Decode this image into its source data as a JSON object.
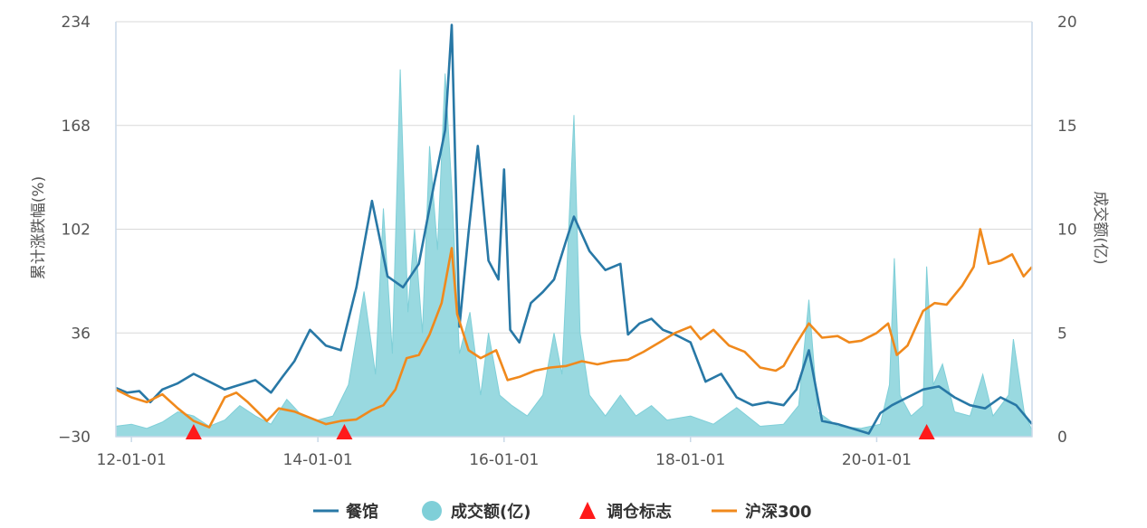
{
  "colors": {
    "restaurant": "#2878a6",
    "volume": "#7fcfd8",
    "signal": "#ff1a1a",
    "index": "#f0891c",
    "grid": "#d9d9d9",
    "axis": "#c9d9e8"
  },
  "chart_data": {
    "type": "line",
    "title": "",
    "ylabel": "累计涨跌幅(%)",
    "ylabel_right": "成交额(亿)",
    "ylim": [
      -30,
      234
    ],
    "ylim_right": [
      0,
      20
    ],
    "yticks": [
      -30,
      36,
      102,
      168,
      234
    ],
    "yticks_right": [
      0,
      5,
      10,
      15,
      20
    ],
    "xlim": [
      "2011-11-01",
      "2021-09-01"
    ],
    "xticks": [
      {
        "date": "2012-01-01",
        "label": "12-01-01"
      },
      {
        "date": "2014-01-01",
        "label": "14-01-01"
      },
      {
        "date": "2016-01-01",
        "label": "16-01-01"
      },
      {
        "date": "2018-01-01",
        "label": "18-01-01"
      },
      {
        "date": "2020-01-01",
        "label": "20-01-01"
      }
    ],
    "legend_position": "bottom",
    "legend": [
      {
        "key": "restaurant",
        "label": "餐馆",
        "marker": "line"
      },
      {
        "key": "volume",
        "label": "成交额(亿)",
        "marker": "circle"
      },
      {
        "key": "signal",
        "label": "调仓标志",
        "marker": "triangle"
      },
      {
        "key": "index",
        "label": "沪深300",
        "marker": "line"
      }
    ],
    "series": [
      {
        "name": "餐馆",
        "axis": "left",
        "points": [
          [
            "2011-11-01",
            1
          ],
          [
            "2011-12-15",
            -2
          ],
          [
            "2012-02-01",
            -1
          ],
          [
            "2012-03-15",
            -8
          ],
          [
            "2012-05-01",
            0
          ],
          [
            "2012-07-01",
            4
          ],
          [
            "2012-09-01",
            10
          ],
          [
            "2012-11-01",
            5
          ],
          [
            "2013-01-01",
            0
          ],
          [
            "2013-03-01",
            3
          ],
          [
            "2013-05-01",
            6
          ],
          [
            "2013-07-01",
            -2
          ],
          [
            "2013-08-15",
            8
          ],
          [
            "2013-10-01",
            18
          ],
          [
            "2013-12-01",
            38
          ],
          [
            "2014-02-01",
            28
          ],
          [
            "2014-04-01",
            25
          ],
          [
            "2014-06-01",
            65
          ],
          [
            "2014-08-01",
            120
          ],
          [
            "2014-10-01",
            72
          ],
          [
            "2014-12-01",
            65
          ],
          [
            "2015-02-01",
            80
          ],
          [
            "2015-04-01",
            130
          ],
          [
            "2015-05-15",
            165
          ],
          [
            "2015-06-10",
            232
          ],
          [
            "2015-07-10",
            40
          ],
          [
            "2015-08-15",
            100
          ],
          [
            "2015-09-20",
            155
          ],
          [
            "2015-11-01",
            82
          ],
          [
            "2015-12-10",
            70
          ],
          [
            "2016-01-01",
            140
          ],
          [
            "2016-01-25",
            38
          ],
          [
            "2016-03-01",
            30
          ],
          [
            "2016-04-15",
            55
          ],
          [
            "2016-06-01",
            62
          ],
          [
            "2016-07-15",
            70
          ],
          [
            "2016-09-01",
            95
          ],
          [
            "2016-10-01",
            110
          ],
          [
            "2016-12-01",
            88
          ],
          [
            "2017-02-01",
            76
          ],
          [
            "2017-04-01",
            80
          ],
          [
            "2017-05-01",
            35
          ],
          [
            "2017-06-15",
            42
          ],
          [
            "2017-08-01",
            45
          ],
          [
            "2017-09-15",
            38
          ],
          [
            "2017-11-01",
            35
          ],
          [
            "2018-01-01",
            30
          ],
          [
            "2018-03-01",
            5
          ],
          [
            "2018-05-01",
            10
          ],
          [
            "2018-07-01",
            -5
          ],
          [
            "2018-09-01",
            -10
          ],
          [
            "2018-11-01",
            -8
          ],
          [
            "2019-01-01",
            -10
          ],
          [
            "2019-02-20",
            0
          ],
          [
            "2019-04-10",
            25
          ],
          [
            "2019-06-01",
            -20
          ],
          [
            "2019-08-01",
            -22
          ],
          [
            "2019-10-01",
            -25
          ],
          [
            "2019-12-01",
            -28
          ],
          [
            "2020-01-15",
            -15
          ],
          [
            "2020-03-01",
            -10
          ],
          [
            "2020-05-01",
            -5
          ],
          [
            "2020-07-01",
            0
          ],
          [
            "2020-09-01",
            2
          ],
          [
            "2020-11-01",
            -5
          ],
          [
            "2021-01-01",
            -10
          ],
          [
            "2021-03-01",
            -12
          ],
          [
            "2021-05-01",
            -5
          ],
          [
            "2021-07-01",
            -10
          ],
          [
            "2021-09-01",
            -22
          ]
        ]
      },
      {
        "name": "成交额(亿)",
        "axis": "right",
        "points": [
          [
            "2011-11-01",
            0.5
          ],
          [
            "2012-01-01",
            0.6
          ],
          [
            "2012-03-01",
            0.4
          ],
          [
            "2012-05-01",
            0.7
          ],
          [
            "2012-07-01",
            1.2
          ],
          [
            "2012-09-01",
            1.0
          ],
          [
            "2012-11-01",
            0.5
          ],
          [
            "2013-01-01",
            0.8
          ],
          [
            "2013-03-01",
            1.5
          ],
          [
            "2013-05-01",
            1.0
          ],
          [
            "2013-07-01",
            0.6
          ],
          [
            "2013-09-01",
            1.8
          ],
          [
            "2013-11-01",
            1.0
          ],
          [
            "2014-01-01",
            0.8
          ],
          [
            "2014-03-01",
            1.0
          ],
          [
            "2014-05-01",
            2.5
          ],
          [
            "2014-07-01",
            7.0
          ],
          [
            "2014-08-15",
            3.0
          ],
          [
            "2014-09-15",
            11.0
          ],
          [
            "2014-10-20",
            4.0
          ],
          [
            "2014-11-20",
            17.7
          ],
          [
            "2014-12-20",
            6.0
          ],
          [
            "2015-01-15",
            10.0
          ],
          [
            "2015-02-15",
            5.0
          ],
          [
            "2015-03-15",
            14.0
          ],
          [
            "2015-04-15",
            9.0
          ],
          [
            "2015-05-15",
            17.5
          ],
          [
            "2015-06-10",
            12.0
          ],
          [
            "2015-07-10",
            4.0
          ],
          [
            "2015-08-20",
            6.0
          ],
          [
            "2015-10-01",
            2.0
          ],
          [
            "2015-11-01",
            5.0
          ],
          [
            "2015-12-15",
            2.0
          ],
          [
            "2016-02-01",
            1.5
          ],
          [
            "2016-04-01",
            1.0
          ],
          [
            "2016-06-01",
            2.0
          ],
          [
            "2016-07-15",
            5.0
          ],
          [
            "2016-08-15",
            3.0
          ],
          [
            "2016-10-01",
            15.5
          ],
          [
            "2016-10-25",
            5.0
          ],
          [
            "2016-12-01",
            2.0
          ],
          [
            "2017-02-01",
            1.0
          ],
          [
            "2017-04-01",
            2.0
          ],
          [
            "2017-06-01",
            1.0
          ],
          [
            "2017-08-01",
            1.5
          ],
          [
            "2017-10-01",
            0.8
          ],
          [
            "2018-01-01",
            1.0
          ],
          [
            "2018-04-01",
            0.6
          ],
          [
            "2018-07-01",
            1.4
          ],
          [
            "2018-10-01",
            0.5
          ],
          [
            "2019-01-01",
            0.6
          ],
          [
            "2019-03-01",
            1.5
          ],
          [
            "2019-04-10",
            6.6
          ],
          [
            "2019-05-15",
            1.2
          ],
          [
            "2019-08-01",
            0.5
          ],
          [
            "2019-11-01",
            0.4
          ],
          [
            "2020-01-15",
            0.6
          ],
          [
            "2020-02-20",
            2.5
          ],
          [
            "2020-03-10",
            8.6
          ],
          [
            "2020-04-01",
            2.0
          ],
          [
            "2020-05-15",
            1.0
          ],
          [
            "2020-07-01",
            1.5
          ],
          [
            "2020-07-15",
            8.2
          ],
          [
            "2020-08-10",
            2.5
          ],
          [
            "2020-09-15",
            3.5
          ],
          [
            "2020-11-01",
            1.2
          ],
          [
            "2021-01-01",
            1.0
          ],
          [
            "2021-02-20",
            3.0
          ],
          [
            "2021-04-01",
            1.0
          ],
          [
            "2021-06-01",
            2.0
          ],
          [
            "2021-06-20",
            4.7
          ],
          [
            "2021-08-01",
            1.2
          ],
          [
            "2021-09-01",
            0.3
          ]
        ]
      },
      {
        "name": "沪深300",
        "axis": "left",
        "points": [
          [
            "2011-11-01",
            0
          ],
          [
            "2012-01-01",
            -5
          ],
          [
            "2012-03-01",
            -8
          ],
          [
            "2012-05-01",
            -3
          ],
          [
            "2012-07-01",
            -12
          ],
          [
            "2012-09-01",
            -20
          ],
          [
            "2012-11-01",
            -24
          ],
          [
            "2013-01-01",
            -5
          ],
          [
            "2013-02-15",
            -2
          ],
          [
            "2013-04-01",
            -8
          ],
          [
            "2013-06-15",
            -20
          ],
          [
            "2013-08-01",
            -12
          ],
          [
            "2013-10-01",
            -14
          ],
          [
            "2013-12-01",
            -18
          ],
          [
            "2014-02-01",
            -22
          ],
          [
            "2014-04-01",
            -20
          ],
          [
            "2014-06-01",
            -19
          ],
          [
            "2014-08-01",
            -13
          ],
          [
            "2014-09-15",
            -10
          ],
          [
            "2014-11-01",
            0
          ],
          [
            "2014-12-15",
            20
          ],
          [
            "2015-02-01",
            22
          ],
          [
            "2015-03-15",
            35
          ],
          [
            "2015-05-01",
            55
          ],
          [
            "2015-06-10",
            90
          ],
          [
            "2015-07-01",
            48
          ],
          [
            "2015-08-15",
            25
          ],
          [
            "2015-10-01",
            20
          ],
          [
            "2015-12-01",
            25
          ],
          [
            "2016-01-15",
            6
          ],
          [
            "2016-03-01",
            8
          ],
          [
            "2016-05-01",
            12
          ],
          [
            "2016-07-01",
            14
          ],
          [
            "2016-09-01",
            15
          ],
          [
            "2016-11-01",
            18
          ],
          [
            "2017-01-01",
            16
          ],
          [
            "2017-03-01",
            18
          ],
          [
            "2017-05-01",
            19
          ],
          [
            "2017-07-01",
            24
          ],
          [
            "2017-09-01",
            30
          ],
          [
            "2017-11-01",
            36
          ],
          [
            "2018-01-01",
            40
          ],
          [
            "2018-02-10",
            32
          ],
          [
            "2018-04-01",
            38
          ],
          [
            "2018-06-01",
            28
          ],
          [
            "2018-08-01",
            24
          ],
          [
            "2018-10-01",
            14
          ],
          [
            "2018-12-01",
            12
          ],
          [
            "2019-01-01",
            15
          ],
          [
            "2019-02-15",
            28
          ],
          [
            "2019-04-10",
            42
          ],
          [
            "2019-06-01",
            33
          ],
          [
            "2019-08-01",
            34
          ],
          [
            "2019-09-15",
            30
          ],
          [
            "2019-11-01",
            31
          ],
          [
            "2020-01-01",
            36
          ],
          [
            "2020-02-15",
            42
          ],
          [
            "2020-03-20",
            22
          ],
          [
            "2020-05-01",
            28
          ],
          [
            "2020-07-01",
            50
          ],
          [
            "2020-08-15",
            55
          ],
          [
            "2020-10-01",
            54
          ],
          [
            "2020-12-01",
            66
          ],
          [
            "2021-01-15",
            78
          ],
          [
            "2021-02-10",
            102
          ],
          [
            "2021-03-15",
            80
          ],
          [
            "2021-05-01",
            82
          ],
          [
            "2021-06-15",
            86
          ],
          [
            "2021-07-30",
            72
          ],
          [
            "2021-09-01",
            78
          ]
        ]
      }
    ],
    "signals": [
      "2012-09-01",
      "2014-04-15",
      "2020-07-15"
    ]
  }
}
